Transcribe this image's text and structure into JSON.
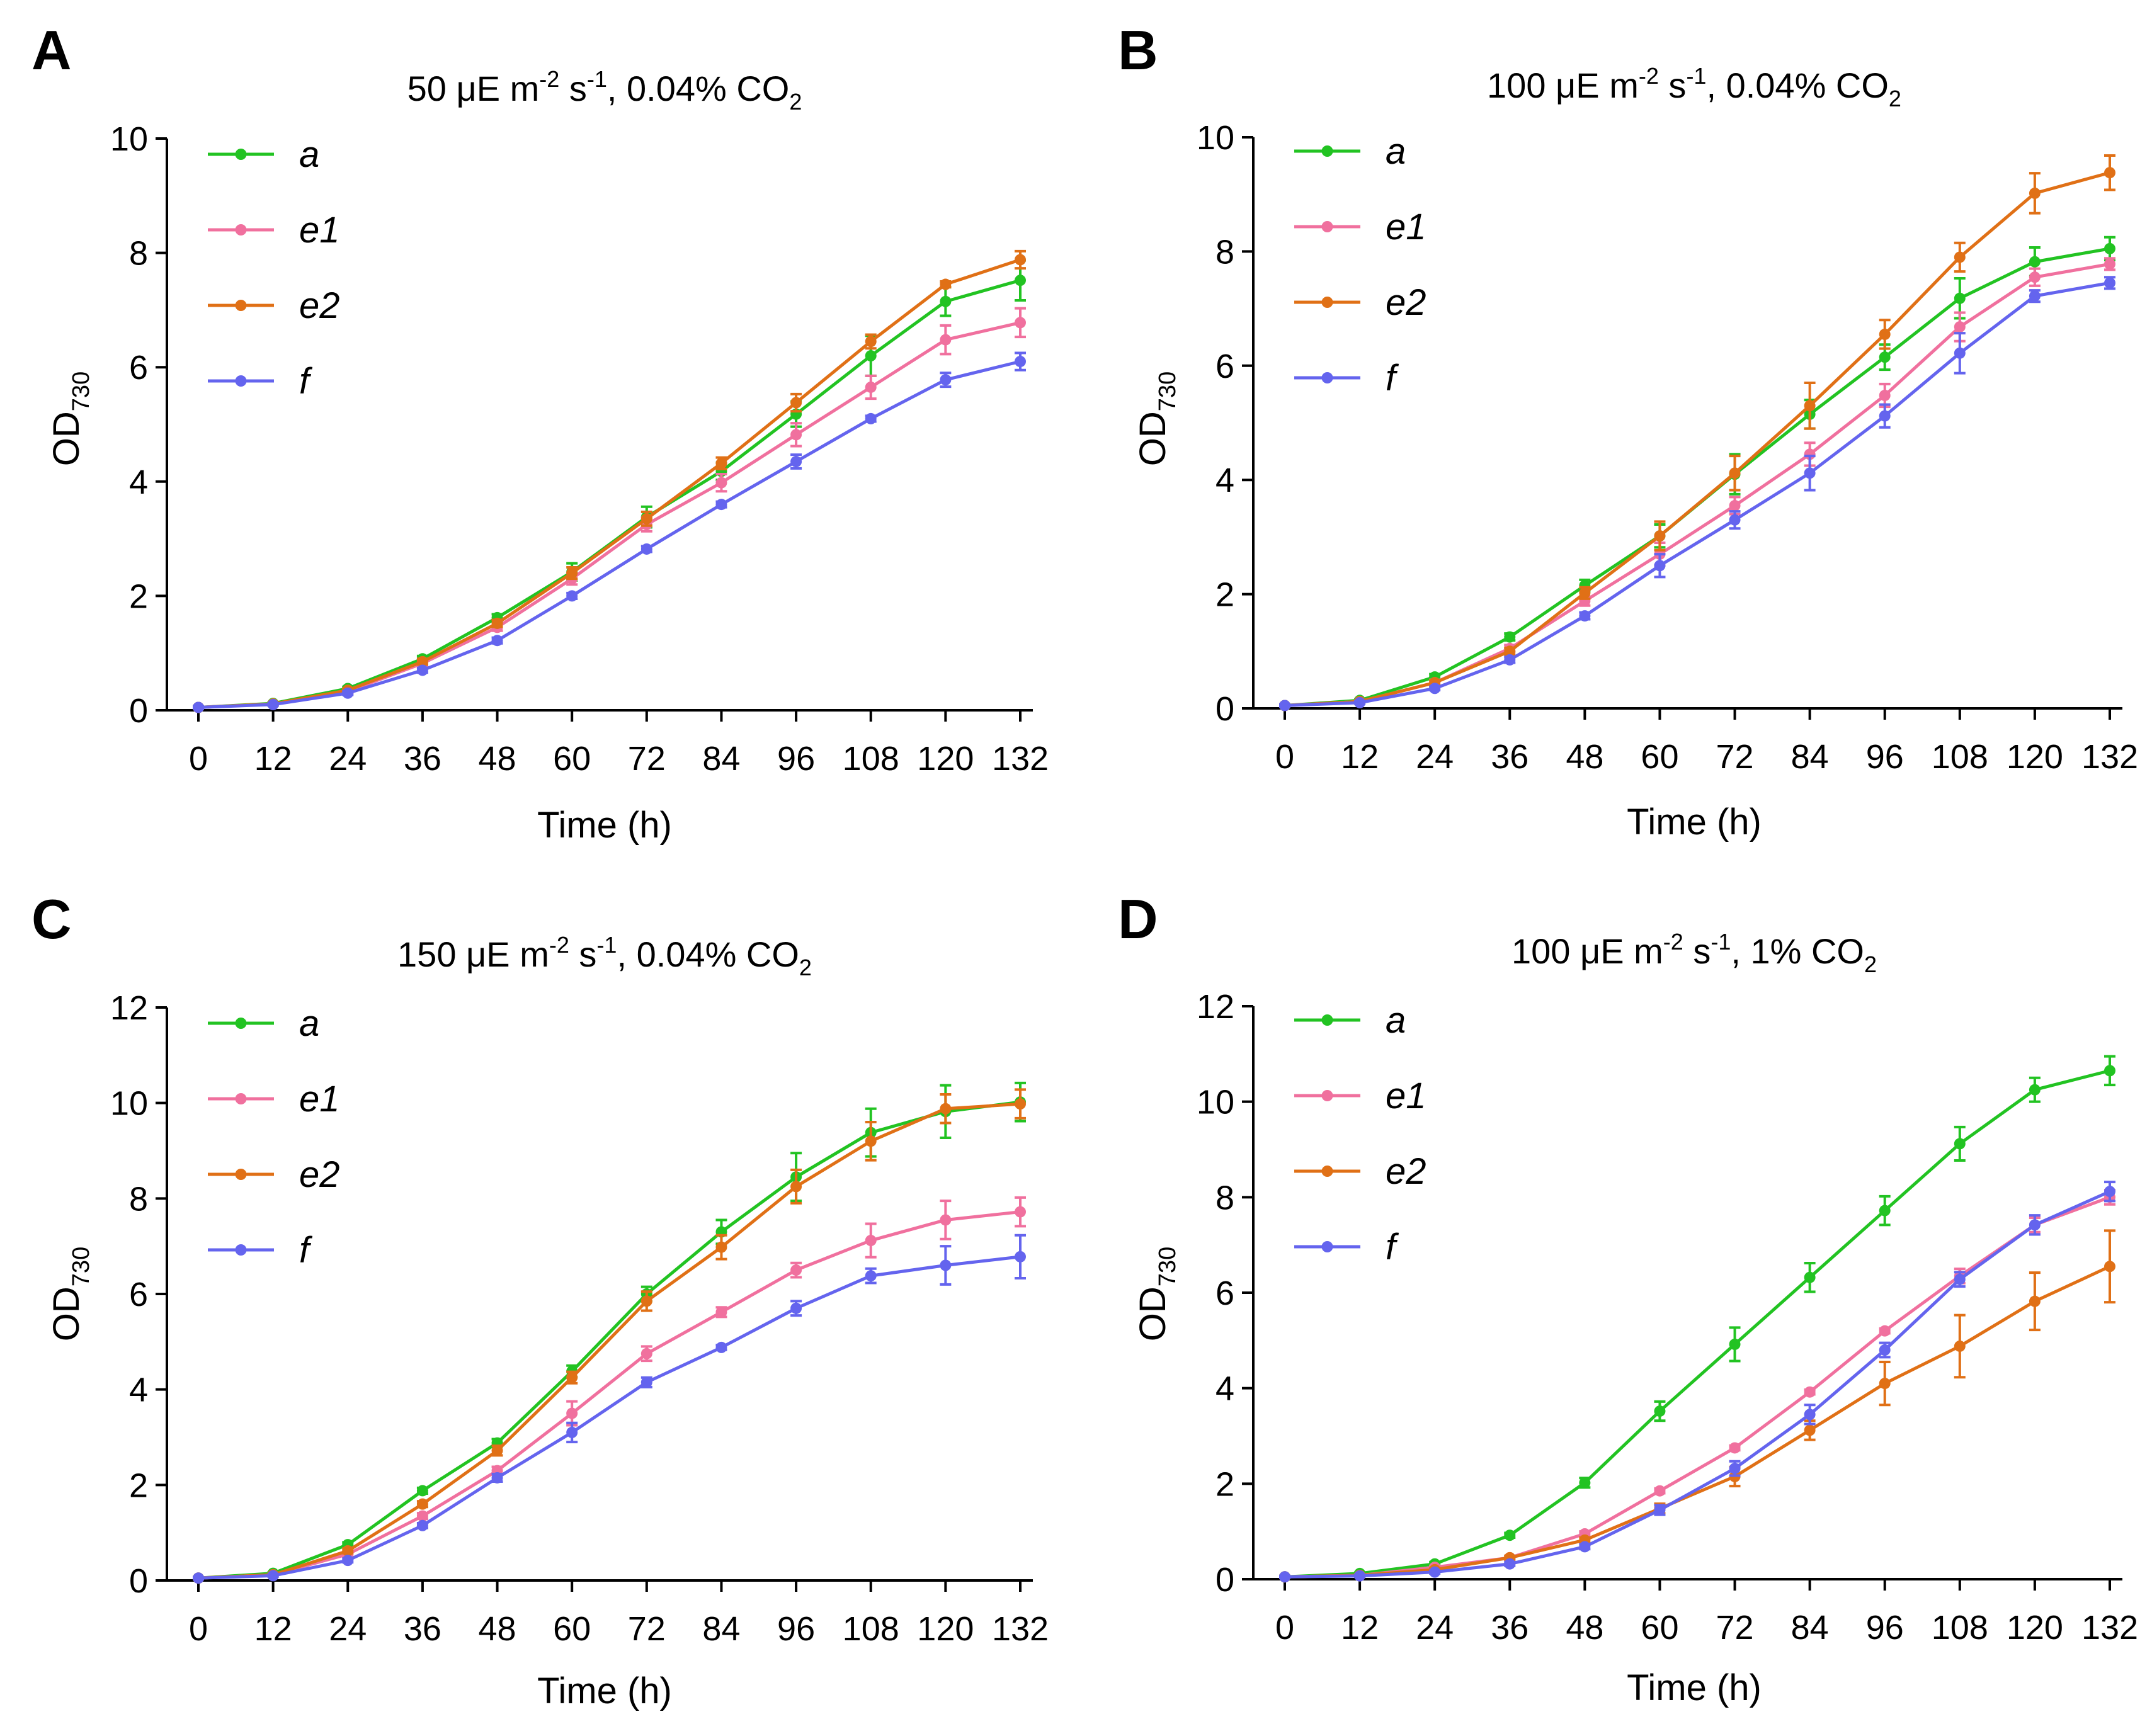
{
  "colors": {
    "a": "#22c322",
    "e1": "#f0709e",
    "e2": "#e07016",
    "f": "#6464ee"
  },
  "legend_labels": [
    "a",
    "e1",
    "e2",
    "f"
  ],
  "chart_data": [
    {
      "panel": "A",
      "type": "line",
      "title": {
        "light": "50",
        "unit": "μE m",
        "exp1": "-2",
        "s": " s",
        "exp2": "-1",
        "co2": ", 0.04% CO",
        "co2sub": "2"
      },
      "xlabel": "Time (h)",
      "ylabel": "OD",
      "ylabel_sub": "730",
      "ylim": [
        0,
        10
      ],
      "yticks": [
        0,
        2,
        4,
        6,
        8,
        10
      ],
      "x": [
        0,
        12,
        24,
        36,
        48,
        60,
        72,
        84,
        96,
        108,
        120,
        132
      ],
      "series": [
        {
          "name": "a",
          "values": [
            0.05,
            0.12,
            0.38,
            0.9,
            1.62,
            2.42,
            3.38,
            4.18,
            5.18,
            6.2,
            7.15,
            7.52
          ],
          "errors": [
            0.02,
            0.02,
            0.03,
            0.05,
            0.06,
            0.15,
            0.18,
            0.15,
            0.22,
            0.35,
            0.25,
            0.35
          ]
        },
        {
          "name": "e1",
          "values": [
            0.05,
            0.11,
            0.33,
            0.82,
            1.45,
            2.3,
            3.25,
            3.98,
            4.82,
            5.65,
            6.48,
            6.78
          ],
          "errors": [
            0.02,
            0.02,
            0.03,
            0.05,
            0.06,
            0.1,
            0.12,
            0.15,
            0.2,
            0.2,
            0.25,
            0.25
          ]
        },
        {
          "name": "e2",
          "values": [
            0.05,
            0.11,
            0.35,
            0.85,
            1.52,
            2.4,
            3.35,
            4.32,
            5.38,
            6.45,
            7.45,
            7.88
          ],
          "errors": [
            0.02,
            0.02,
            0.03,
            0.05,
            0.06,
            0.1,
            0.12,
            0.1,
            0.15,
            0.12,
            0.05,
            0.15
          ]
        },
        {
          "name": "f",
          "values": [
            0.05,
            0.1,
            0.3,
            0.7,
            1.22,
            2.0,
            2.82,
            3.6,
            4.35,
            5.1,
            5.78,
            6.1
          ],
          "errors": [
            0.02,
            0.02,
            0.03,
            0.04,
            0.05,
            0.05,
            0.05,
            0.05,
            0.12,
            0.05,
            0.12,
            0.15
          ]
        }
      ]
    },
    {
      "panel": "B",
      "type": "line",
      "title": {
        "light": "100",
        "unit": "μE m",
        "exp1": "-2",
        "s": " s",
        "exp2": "-1",
        "co2": ", 0.04% CO",
        "co2sub": "2"
      },
      "xlabel": "Time (h)",
      "ylabel": "OD",
      "ylabel_sub": "730",
      "ylim": [
        0,
        10
      ],
      "yticks": [
        0,
        2,
        4,
        6,
        8,
        10
      ],
      "x": [
        0,
        12,
        24,
        36,
        48,
        60,
        72,
        84,
        96,
        108,
        120,
        132
      ],
      "series": [
        {
          "name": "a",
          "values": [
            0.05,
            0.14,
            0.55,
            1.25,
            2.15,
            3.02,
            4.1,
            5.15,
            6.15,
            7.18,
            7.82,
            8.05
          ],
          "errors": [
            0.02,
            0.02,
            0.05,
            0.06,
            0.1,
            0.2,
            0.35,
            0.25,
            0.22,
            0.35,
            0.25,
            0.2
          ]
        },
        {
          "name": "e1",
          "values": [
            0.05,
            0.12,
            0.45,
            1.05,
            1.88,
            2.7,
            3.55,
            4.45,
            5.48,
            6.68,
            7.55,
            7.78
          ],
          "errors": [
            0.02,
            0.02,
            0.05,
            0.06,
            0.08,
            0.2,
            0.15,
            0.2,
            0.2,
            0.25,
            0.15,
            0.1
          ]
        },
        {
          "name": "e2",
          "values": [
            0.05,
            0.12,
            0.45,
            1.0,
            2.02,
            3.02,
            4.12,
            5.3,
            6.55,
            7.9,
            9.02,
            9.38
          ],
          "errors": [
            0.02,
            0.02,
            0.04,
            0.06,
            0.1,
            0.25,
            0.3,
            0.4,
            0.25,
            0.25,
            0.35,
            0.3
          ]
        },
        {
          "name": "f",
          "values": [
            0.05,
            0.1,
            0.35,
            0.85,
            1.62,
            2.5,
            3.3,
            4.12,
            5.12,
            6.22,
            7.22,
            7.45
          ],
          "errors": [
            0.02,
            0.02,
            0.03,
            0.05,
            0.06,
            0.2,
            0.15,
            0.3,
            0.2,
            0.35,
            0.1,
            0.1
          ]
        }
      ]
    },
    {
      "panel": "C",
      "type": "line",
      "title": {
        "light": "150",
        "unit": "μE m",
        "exp1": "-2",
        "s": " s",
        "exp2": "-1",
        "co2": ", 0.04% CO",
        "co2sub": "2"
      },
      "xlabel": "Time (h)",
      "ylabel": "OD",
      "ylabel_sub": "730",
      "ylim": [
        0,
        12
      ],
      "yticks": [
        0,
        2,
        4,
        6,
        8,
        10,
        12
      ],
      "x": [
        0,
        12,
        24,
        36,
        48,
        60,
        72,
        84,
        96,
        108,
        120,
        132
      ],
      "series": [
        {
          "name": "a",
          "values": [
            0.05,
            0.15,
            0.75,
            1.88,
            2.88,
            4.38,
            6.0,
            7.3,
            8.45,
            9.38,
            9.82,
            10.02
          ],
          "errors": [
            0.02,
            0.02,
            0.05,
            0.06,
            0.08,
            0.12,
            0.15,
            0.25,
            0.5,
            0.5,
            0.55,
            0.4
          ]
        },
        {
          "name": "e1",
          "values": [
            0.05,
            0.12,
            0.55,
            1.35,
            2.3,
            3.5,
            4.75,
            5.62,
            6.5,
            7.12,
            7.55,
            7.72
          ],
          "errors": [
            0.02,
            0.02,
            0.05,
            0.06,
            0.08,
            0.25,
            0.15,
            0.1,
            0.15,
            0.35,
            0.4,
            0.3
          ]
        },
        {
          "name": "e2",
          "values": [
            0.05,
            0.12,
            0.62,
            1.6,
            2.72,
            4.25,
            5.85,
            6.98,
            8.25,
            9.2,
            9.88,
            9.98
          ],
          "errors": [
            0.02,
            0.02,
            0.05,
            0.06,
            0.1,
            0.12,
            0.2,
            0.25,
            0.35,
            0.4,
            0.3,
            0.3
          ]
        },
        {
          "name": "f",
          "values": [
            0.05,
            0.1,
            0.42,
            1.15,
            2.15,
            3.1,
            4.15,
            4.88,
            5.7,
            6.38,
            6.6,
            6.78
          ],
          "errors": [
            0.02,
            0.02,
            0.04,
            0.05,
            0.08,
            0.2,
            0.1,
            0.05,
            0.15,
            0.15,
            0.4,
            0.45
          ]
        }
      ]
    },
    {
      "panel": "D",
      "type": "line",
      "title": {
        "light": "100",
        "unit": "μE m",
        "exp1": "-2",
        "s": " s",
        "exp2": "-1",
        "co2": ", 1% CO",
        "co2sub": "2"
      },
      "xlabel": "Time (h)",
      "ylabel": "OD",
      "ylabel_sub": "730",
      "ylim": [
        0,
        12
      ],
      "yticks": [
        0,
        2,
        4,
        6,
        8,
        10,
        12
      ],
      "x": [
        0,
        12,
        24,
        36,
        48,
        60,
        72,
        84,
        96,
        108,
        120,
        132
      ],
      "series": [
        {
          "name": "a",
          "values": [
            0.05,
            0.12,
            0.32,
            0.92,
            2.02,
            3.52,
            4.92,
            6.32,
            7.72,
            9.12,
            10.25,
            10.65
          ],
          "errors": [
            0.02,
            0.02,
            0.04,
            0.05,
            0.1,
            0.2,
            0.35,
            0.3,
            0.3,
            0.35,
            0.25,
            0.3
          ]
        },
        {
          "name": "e1",
          "values": [
            0.05,
            0.08,
            0.25,
            0.45,
            0.95,
            1.85,
            2.75,
            3.92,
            5.2,
            6.35,
            7.42,
            8.0
          ],
          "errors": [
            0.02,
            0.02,
            0.03,
            0.04,
            0.05,
            0.05,
            0.05,
            0.05,
            0.05,
            0.15,
            0.15,
            0.15
          ]
        },
        {
          "name": "e2",
          "values": [
            0.05,
            0.08,
            0.2,
            0.45,
            0.82,
            1.48,
            2.15,
            3.12,
            4.1,
            4.88,
            5.82,
            6.55
          ],
          "errors": [
            0.02,
            0.02,
            0.03,
            0.04,
            0.05,
            0.1,
            0.2,
            0.2,
            0.45,
            0.65,
            0.6,
            0.75
          ]
        },
        {
          "name": "f",
          "values": [
            0.05,
            0.07,
            0.15,
            0.32,
            0.68,
            1.45,
            2.32,
            3.45,
            4.8,
            6.28,
            7.42,
            8.12
          ],
          "errors": [
            0.02,
            0.02,
            0.03,
            0.04,
            0.05,
            0.1,
            0.15,
            0.2,
            0.15,
            0.15,
            0.2,
            0.2
          ]
        }
      ]
    }
  ]
}
